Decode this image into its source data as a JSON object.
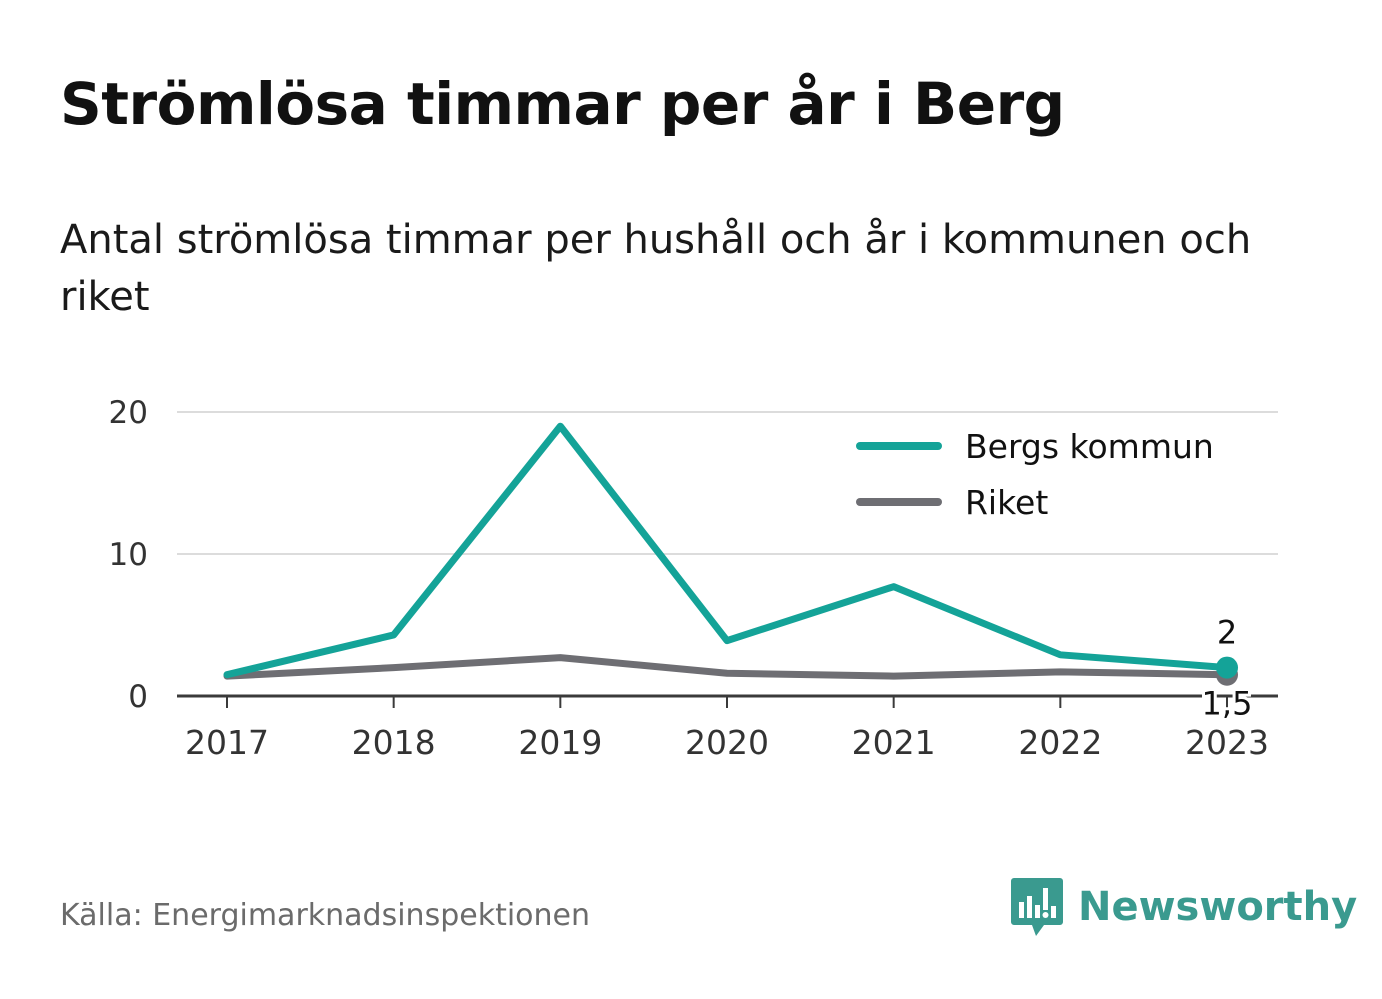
{
  "header": {
    "title": "Strömlösa timmar per år i Berg",
    "subtitle": "Antal strömlösa timmar per hushåll och år i kommunen och riket"
  },
  "chart_data": {
    "type": "line",
    "x": [
      "2017",
      "2018",
      "2019",
      "2020",
      "2021",
      "2022",
      "2023"
    ],
    "series": [
      {
        "name": "Bergs kommun",
        "color": "#14a398",
        "values": [
          1.5,
          4.3,
          19.0,
          3.9,
          7.7,
          2.9,
          2.0
        ],
        "end_label": "2"
      },
      {
        "name": "Riket",
        "color": "#6e6e73",
        "values": [
          1.4,
          2.0,
          2.7,
          1.6,
          1.4,
          1.7,
          1.5
        ],
        "end_label": "1,5"
      }
    ],
    "yticks": [
      0,
      10,
      20
    ],
    "ylim": [
      0,
      20
    ],
    "grid": true,
    "legend": "top-right"
  },
  "footer": {
    "source": "Källa: Energimarknadsinspektionen",
    "brand": "Newsworthy",
    "brand_icon": "newsworthy-logo-icon",
    "brand_color": "#3a9a8f"
  }
}
